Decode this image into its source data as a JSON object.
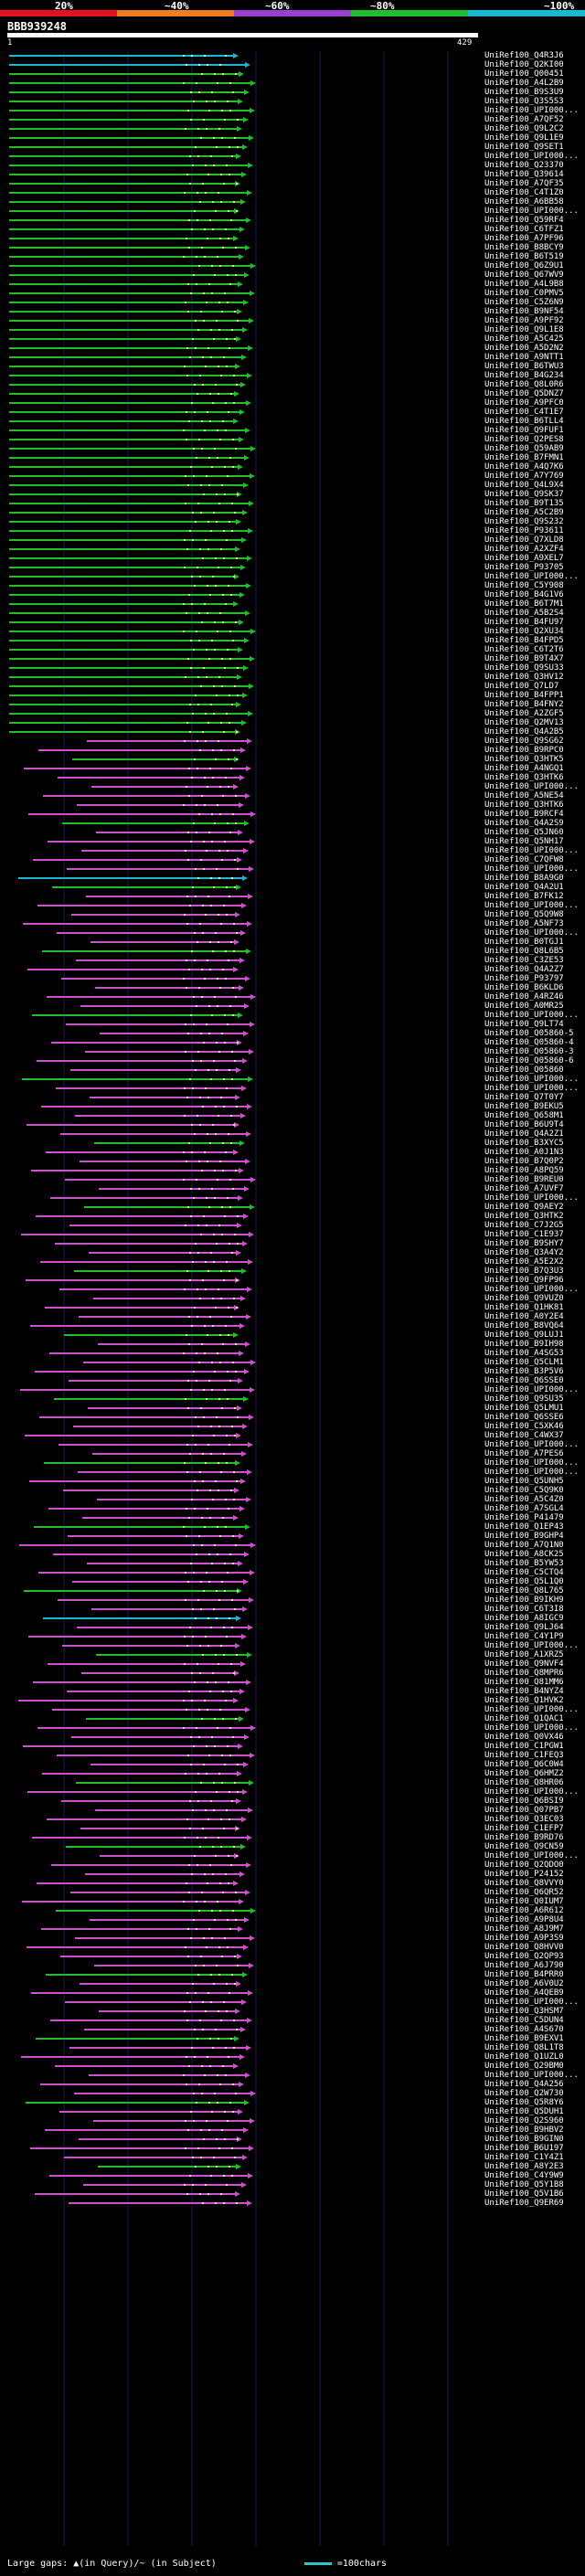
{
  "scale": {
    "labels": [
      "20%",
      "~40%",
      "~60%",
      "~80%",
      "~100%"
    ],
    "colors": [
      "#e0141e",
      "#f07d1e",
      "#9b3fd0",
      "#1fbf2a",
      "#1ab7d8"
    ]
  },
  "query": {
    "title": "BBB939248",
    "start": "1",
    "end": "429"
  },
  "hits": [
    "UniRef100_Q4R3J6",
    "UniRef100_Q2KI00",
    "UniRef100_Q00451",
    "UniRef100_A4L2B9",
    "UniRef100_B9S3U9",
    "UniRef100_Q3S5S3",
    "UniRef100_UPI000...",
    "UniRef100_A7QF52",
    "UniRef100_Q9L2C2",
    "UniRef100_Q9L1E9",
    "UniRef100_Q9SET1",
    "UniRef100_UPI000...",
    "UniRef100_Q23370",
    "UniRef100_Q39614",
    "UniRef100_A7QF35",
    "UniRef100_C4T1Z0",
    "UniRef100_A6BB58",
    "UniRef100_UPI000...",
    "UniRef100_Q59RF4",
    "UniRef100_C6TFZ1",
    "UniRef100_A7PF96",
    "UniRef100_B8BCY9",
    "UniRef100_B6T519",
    "UniRef100_Q6Z9U1",
    "UniRef100_Q67WV9",
    "UniRef100_A4L9B8",
    "UniRef100_C0PMV5",
    "UniRef100_C5Z6N9",
    "UniRef100_B9NF54",
    "UniRef100_A9PF92",
    "UniRef100_Q9L1E8",
    "UniRef100_A5C425",
    "UniRef100_A5D2N2",
    "UniRef100_A9NTT1",
    "UniRef100_B6TWU3",
    "UniRef100_B4G234",
    "UniRef100_Q8L0R6",
    "UniRef100_Q5DNZ7",
    "UniRef100_A9PFC0",
    "UniRef100_C4T1E7",
    "UniRef100_B6TLL4",
    "UniRef100_Q9FUF1",
    "UniRef100_Q2PES8",
    "UniRef100_Q59AB9",
    "UniRef100_B7FMN1",
    "UniRef100_A4Q7K6",
    "UniRef100_A7Y769",
    "UniRef100_Q4L9X4",
    "UniRef100_Q9SK37",
    "UniRef100_B9T135",
    "UniRef100_A5C2B9",
    "UniRef100_Q9S232",
    "UniRef100_P93611",
    "UniRef100_Q7XLD8",
    "UniRef100_A2XZF4",
    "UniRef100_A9XEL7",
    "UniRef100_P93705",
    "UniRef100_UPI000...",
    "UniRef100_C5Y908",
    "UniRef100_B4G1V6",
    "UniRef100_B6T7M1",
    "UniRef100_A5B2S4",
    "UniRef100_B4FU97",
    "UniRef100_Q2XU34",
    "UniRef100_B4FPD5",
    "UniRef100_C6T2T6",
    "UniRef100_B9T4X7",
    "UniRef100_Q9SU33",
    "UniRef100_Q3HV12",
    "UniRef100_Q7LD7",
    "UniRef100_B4FPP1",
    "UniRef100_B4FNY2",
    "UniRef100_A2ZGF5",
    "UniRef100_Q2MV13",
    "UniRef100_Q4A2B5",
    "UniRef100_Q9SG62",
    "UniRef100_B9RPC0",
    "UniRef100_Q3HTK5",
    "UniRef100_A4NGQ1",
    "UniRef100_Q3HTK6",
    "UniRef100_UPI000...",
    "UniRef100_A5NE54",
    "UniRef100_Q3HTK6",
    "UniRef100_B9RCF4",
    "UniRef100_Q4A2S9",
    "UniRef100_Q5JN60",
    "UniRef100_Q5NH17",
    "UniRef100_UPI000...",
    "UniRef100_C7QFW8",
    "UniRef100_UPI000...",
    "UniRef100_B8A9G0",
    "UniRef100_Q4A2U1",
    "UniRef100_B7FK12",
    "UniRef100_UPI000...",
    "UniRef100_Q5Q9W8",
    "UniRef100_A5NF73",
    "UniRef100_UPI000...",
    "UniRef100_B0TGJ1",
    "UniRef100_Q8L6B5",
    "UniRef100_C3ZE53",
    "UniRef100_Q4A2Z7",
    "UniRef100_P93797",
    "UniRef100_B6KLD6",
    "UniRef100_A4RZ46",
    "UniRef100_A0MR25",
    "UniRef100_UPI000...",
    "UniRef100_Q9LT74",
    "UniRef100_Q05860-5",
    "UniRef100_Q05860-4",
    "UniRef100_Q05860-3",
    "UniRef100_Q05860-6",
    "UniRef100_Q05860",
    "UniRef100_UPI000...",
    "UniRef100_UPI000...",
    "UniRef100_Q7T0Y7",
    "UniRef100_B9EKU5",
    "UniRef100_Q658M1",
    "UniRef100_B6U9T4",
    "UniRef100_Q4A2Z1",
    "UniRef100_B3XYC5",
    "UniRef100_A0J1N3",
    "UniRef100_B7Q0P2",
    "UniRef100_A8PQ59",
    "UniRef100_B9REU0",
    "UniRef100_A7UVF7",
    "UniRef100_UPI000...",
    "UniRef100_Q9AEY2",
    "UniRef100_Q3HTK2",
    "UniRef100_C7J2G5",
    "UniRef100_C1E937",
    "UniRef100_B9SHY7",
    "UniRef100_Q3A4Y2",
    "UniRef100_A5E2X2",
    "UniRef100_B7Q3U3",
    "UniRef100_Q9FP96",
    "UniRef100_UPI000...",
    "UniRef100_Q9VUZ0",
    "UniRef100_Q1HK81",
    "UniRef100_A0Y2E4",
    "UniRef100_B8VQ64",
    "UniRef100_Q9LUJ1",
    "UniRef100_B9IH98",
    "UniRef100_A4SG53",
    "UniRef100_Q5CLM1",
    "UniRef100_B3P5V6",
    "UniRef100_Q6SSE0",
    "UniRef100_UPI000...",
    "UniRef100_Q9SU35",
    "UniRef100_Q5LMU1",
    "UniRef100_Q6SSE6",
    "UniRef100_C5XK46",
    "UniRef100_C4WX37",
    "UniRef100_UPI000...",
    "UniRef100_A7PES6",
    "UniRef100_UPI000...",
    "UniRef100_UPI000...",
    "UniRef100_Q5UNH5",
    "UniRef100_C5Q9K0",
    "UniRef100_A5C4Z0",
    "UniRef100_A7SGL4",
    "UniRef100_P41479",
    "UniRef100_Q1EP43",
    "UniRef100_B9GHP4",
    "UniRef100_A7Q1N0",
    "UniRef100_A8CK25",
    "UniRef100_B5YW53",
    "UniRef100_C5CTQ4",
    "UniRef100_Q5L1Q0",
    "UniRef100_Q8L765",
    "UniRef100_B9IKH9",
    "UniRef100_C6T3I8",
    "UniRef100_A8IGC9",
    "UniRef100_Q9LJ64",
    "UniRef100_C4Y1P9",
    "UniRef100_UPI000...",
    "UniRef100_A1XRZ5",
    "UniRef100_Q9NVF4",
    "UniRef100_Q8MPR6",
    "UniRef100_Q81MM6",
    "UniRef100_B4NYZ4",
    "UniRef100_Q1HVK2",
    "UniRef100_UPI000...",
    "UniRef100_Q1QAC1",
    "UniRef100_UPI000...",
    "UniRef100_Q0VX46",
    "UniRef100_C1PGW1",
    "UniRef100_C1FEQ3",
    "UniRef100_Q6C0W4",
    "UniRef100_Q6HMZ2",
    "UniRef100_Q8HR06",
    "UniRef100_UPI000...",
    "UniRef100_Q6BSI9",
    "UniRef100_Q07PB7",
    "UniRef100_Q3EC03",
    "UniRef100_C1EFP7",
    "UniRef100_B9RD76",
    "UniRef100_Q9CN59",
    "UniRef100_UPI000...",
    "UniRef100_Q2QDO0",
    "UniRef100_P24152",
    "UniRef100_Q8VVY0",
    "UniRef100_Q6QR52",
    "UniRef100_Q0IUM7",
    "UniRef100_A6R612",
    "UniRef100_A9P8U4",
    "UniRef100_A8J9M7",
    "UniRef100_A9P3S9",
    "UniRef100_Q8HVV0",
    "UniRef100_Q2QP93",
    "UniRef100_A6J790",
    "UniRef100_B4PRR0",
    "UniRef100_A6V0U2",
    "UniRef100_A4QEB9",
    "UniRef100_UPI000...",
    "UniRef100_Q3HSM7",
    "UniRef100_C5DUN4",
    "UniRef100_A4S670",
    "UniRef100_B9EXV1",
    "UniRef100_Q8L1T8",
    "UniRef100_Q1UZL0",
    "UniRef100_Q29BM0",
    "UniRef100_UPI000...",
    "UniRef100_Q4A256",
    "UniRef100_Q2W730",
    "UniRef100_Q5R8Y6",
    "UniRef100_Q5DUH1",
    "UniRef100_Q2S960",
    "UniRef100_B9HBV2",
    "UniRef100_B9GIN0",
    "UniRef100_B6U197",
    "UniRef100_C1Y4Z1",
    "UniRef100_A8Y2E3",
    "UniRef100_C4Y9W9",
    "UniRef100_Q5Y1B8",
    "UniRef100_Q5V1B6",
    "UniRef100_Q9ER69"
  ],
  "footer": {
    "gaps_text": "Large gaps: ▲(in Query)/~ (in Subject)",
    "legend_text": "=100chars"
  }
}
